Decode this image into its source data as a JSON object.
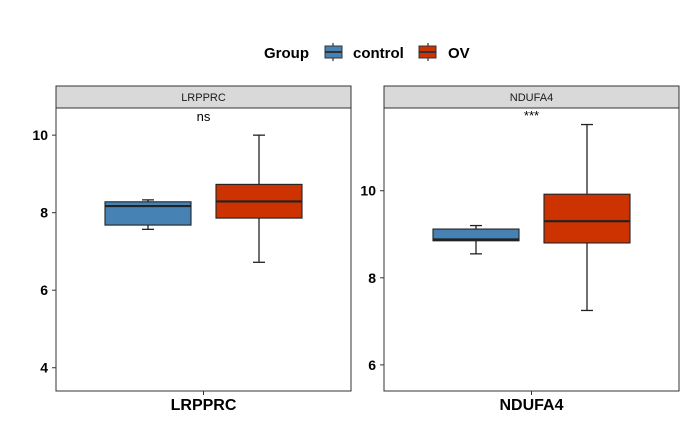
{
  "chart_data": {
    "type": "boxplot",
    "legend": {
      "title": "Group",
      "placement": "top",
      "entries": [
        {
          "name": "control",
          "color": "#4682B4"
        },
        {
          "name": "OV",
          "color": "#CC3300"
        }
      ]
    },
    "panels": [
      {
        "name": "LRPPRC",
        "strip_label": "LRPPRC",
        "xlabel": "LRPPRC",
        "significance": "ns",
        "ylim": [
          3.4,
          10.7
        ],
        "yticks": [
          4,
          6,
          8,
          10
        ],
        "boxes": [
          {
            "group": "control",
            "min": 7.57,
            "q1": 7.68,
            "median": 8.17,
            "q3": 8.28,
            "max": 8.33
          },
          {
            "group": "OV",
            "min": 6.72,
            "q1": 7.86,
            "median": 8.29,
            "q3": 8.73,
            "max": 10.0
          }
        ]
      },
      {
        "name": "NDUFA4",
        "strip_label": "NDUFA4",
        "xlabel": "NDUFA4",
        "significance": "***",
        "ylim": [
          5.4,
          11.9
        ],
        "yticks": [
          6,
          8,
          10
        ],
        "boxes": [
          {
            "group": "control",
            "min": 8.55,
            "q1": 8.85,
            "median": 8.88,
            "q3": 9.12,
            "max": 9.2
          },
          {
            "group": "OV",
            "min": 7.25,
            "q1": 8.8,
            "median": 9.3,
            "q3": 9.92,
            "max": 11.52
          }
        ]
      }
    ]
  }
}
